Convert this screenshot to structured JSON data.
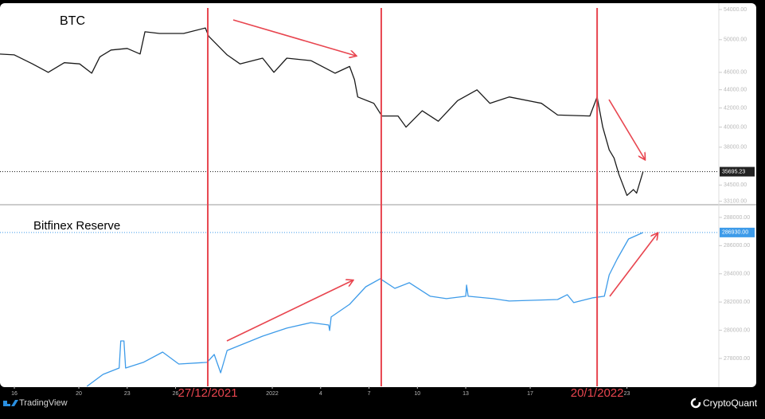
{
  "chart_data": [
    {
      "type": "line",
      "title": "BTC",
      "ylog": true,
      "ylim": [
        32810,
        54770
      ],
      "yticks": [
        {
          "value": 54000,
          "label": "54000.00"
        },
        {
          "value": 50000,
          "label": "50000.00"
        },
        {
          "value": 46000,
          "label": "46000.00"
        },
        {
          "value": 44000,
          "label": "44000.00"
        },
        {
          "value": 42000,
          "label": "42000.00"
        },
        {
          "value": 40000,
          "label": "40000.00"
        },
        {
          "value": 38000,
          "label": "38000.00"
        },
        {
          "value": 34500,
          "label": "34500.00"
        },
        {
          "value": 33100,
          "label": "33100.00"
        }
      ],
      "last_value": 35695.23,
      "x": [
        -0.9,
        0,
        1.1,
        2.1,
        3.1,
        4.05,
        4.8,
        5.3,
        6,
        7,
        7.8,
        8.1,
        9,
        10.5,
        11.85,
        12.05,
        13.2,
        14,
        15.4,
        16.1,
        16.9,
        18.4,
        19.9,
        20.8,
        21.1,
        21.3,
        22.3,
        22.8,
        23.8,
        24.3,
        25.3,
        26.3,
        27.5,
        28.7,
        29.5,
        30.7,
        32.7,
        33.7,
        35.7,
        36.15,
        36.5,
        36.9,
        37.2,
        37.5,
        38,
        38.4,
        38.6,
        39
      ],
      "series": [
        {
          "name": "BTC",
          "color": "#1a1a1a",
          "values": [
            48190,
            48100,
            47030,
            46000,
            47150,
            47000,
            45900,
            47850,
            48700,
            48900,
            48200,
            51020,
            50800,
            50800,
            51520,
            50450,
            48100,
            47000,
            47700,
            46000,
            47700,
            47400,
            45900,
            46700,
            45150,
            43200,
            42500,
            41150,
            41150,
            40000,
            41700,
            40600,
            42800,
            43990,
            42500,
            43200,
            42500,
            41250,
            41150,
            43200,
            40000,
            37740,
            36960,
            35470,
            33600,
            34100,
            33800,
            35695.23
          ]
        }
      ]
    },
    {
      "type": "line",
      "title": "Bitfinex Reserve",
      "ylim": [
        276020,
        288900
      ],
      "yticks": [
        {
          "value": 288000,
          "label": "288000.00"
        },
        {
          "value": 286000,
          "label": "286000.00"
        },
        {
          "value": 284000,
          "label": "284000.00"
        },
        {
          "value": 282000,
          "label": "282000.00"
        },
        {
          "value": 280000,
          "label": "280000.00"
        },
        {
          "value": 278000,
          "label": "278000.00"
        }
      ],
      "last_value": {
        "value": 286930,
        "label": "286930.00"
      },
      "xlim": [
        -0.89,
        43.7
      ],
      "xticks": [
        {
          "value": 0,
          "label": "16"
        },
        {
          "value": 4,
          "label": "20"
        },
        {
          "value": 7,
          "label": "23"
        },
        {
          "value": 10,
          "label": "26"
        },
        {
          "value": 16,
          "label": "2022"
        },
        {
          "value": 19,
          "label": "4"
        },
        {
          "value": 22,
          "label": "7"
        },
        {
          "value": 25,
          "label": "10"
        },
        {
          "value": 28,
          "label": "13"
        },
        {
          "value": 32,
          "label": "17"
        },
        {
          "value": 38,
          "label": "23"
        }
      ],
      "markers": [
        {
          "x": 12,
          "label": "27/12/2021"
        },
        {
          "x": 22.76
        },
        {
          "x": 36.15,
          "label": "20/1/2022"
        }
      ],
      "marker_color": "#e8454f",
      "x": [
        4.5,
        5.5,
        6.5,
        6.6,
        6.8,
        6.9,
        8,
        9.2,
        10.2,
        11.95,
        12.4,
        12.8,
        13.2,
        15.4,
        16.9,
        18.4,
        19.5,
        19.56,
        19.65,
        20.8,
        21.8,
        22.7,
        23.6,
        24.5,
        25.8,
        26.8,
        28,
        28.05,
        28.15,
        29.7,
        30.7,
        33.7,
        34.3,
        34.7,
        35.9,
        36.6,
        36.9,
        37.4,
        38.1,
        39
      ],
      "series": [
        {
          "name": "Bitfinex Reserve",
          "color": "#3d9be9",
          "values": [
            276020,
            276870,
            277320,
            279240,
            279240,
            277320,
            277720,
            278450,
            277600,
            277720,
            278280,
            276980,
            278560,
            279580,
            280150,
            280540,
            280370,
            279980,
            280940,
            281840,
            283080,
            283650,
            282970,
            283370,
            282410,
            282240,
            282410,
            283200,
            282410,
            282240,
            282070,
            282180,
            282520,
            281960,
            282300,
            282410,
            283930,
            285060,
            286470,
            286930
          ]
        }
      ]
    }
  ],
  "footer": {
    "left": "TradingView",
    "right": "CryptoQuant"
  }
}
